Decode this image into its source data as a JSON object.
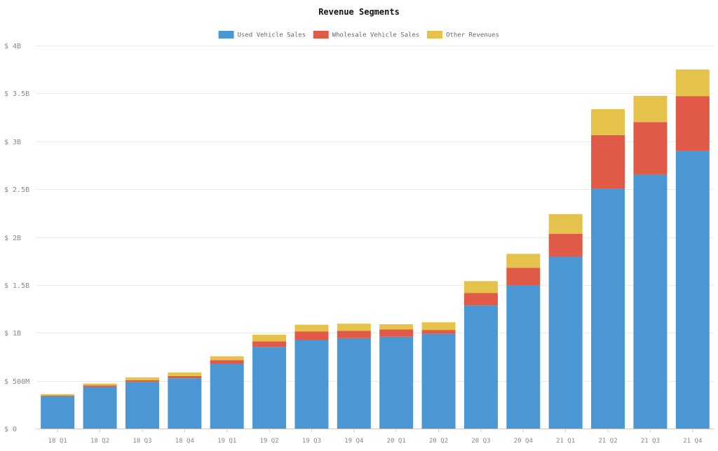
{
  "chart_data": {
    "type": "bar",
    "stacked": true,
    "title": "Revenue Segments",
    "legend_position": "top-center",
    "grid": true,
    "categories": [
      "18 Q1",
      "18 Q2",
      "18 Q3",
      "18 Q4",
      "19 Q1",
      "19 Q2",
      "19 Q3",
      "19 Q4",
      "20 Q1",
      "20 Q2",
      "20 Q3",
      "20 Q4",
      "21 Q1",
      "21 Q2",
      "21 Q3",
      "21 Q4"
    ],
    "ylim": [
      0,
      4000000000
    ],
    "yticks": [
      {
        "value": 0,
        "label": "$ 0"
      },
      {
        "value": 500000000,
        "label": "$ 500M"
      },
      {
        "value": 1000000000,
        "label": "$ 1B"
      },
      {
        "value": 1500000000,
        "label": "$ 1.5B"
      },
      {
        "value": 2000000000,
        "label": "$ 2B"
      },
      {
        "value": 2500000000,
        "label": "$ 2.5B"
      },
      {
        "value": 3000000000,
        "label": "$ 3B"
      },
      {
        "value": 3500000000,
        "label": "$ 3.5B"
      },
      {
        "value": 4000000000,
        "label": "$ 4B"
      }
    ],
    "series": [
      {
        "name": "Used Vehicle Sales",
        "color": "#4a97d4",
        "values": [
          335000000,
          435000000,
          485000000,
          525000000,
          680000000,
          850000000,
          925000000,
          945000000,
          960000000,
          990000000,
          1285000000,
          1495000000,
          1795000000,
          2505000000,
          2655000000,
          2900000000
        ]
      },
      {
        "name": "Wholesale Vehicle Sales",
        "color": "#e05a47",
        "values": [
          10000000,
          15000000,
          20000000,
          25000000,
          35000000,
          60000000,
          90000000,
          75000000,
          75000000,
          40000000,
          130000000,
          185000000,
          240000000,
          560000000,
          545000000,
          570000000
        ]
      },
      {
        "name": "Other Revenues",
        "color": "#e5c24b",
        "values": [
          15000000,
          20000000,
          30000000,
          35000000,
          40000000,
          70000000,
          70000000,
          75000000,
          55000000,
          80000000,
          125000000,
          145000000,
          205000000,
          270000000,
          275000000,
          280000000
        ]
      }
    ]
  }
}
